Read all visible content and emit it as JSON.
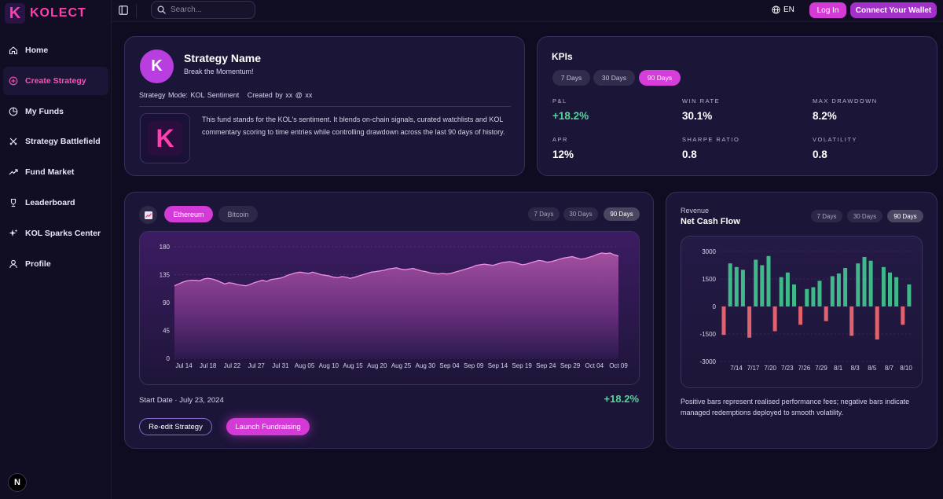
{
  "brand": {
    "logo_letter": "K",
    "name": "KOLECT"
  },
  "colors": {
    "accent": "#d43ad6",
    "positive": "#3fb98a",
    "negative": "#e0626f",
    "background": "#0f0c22"
  },
  "sidebar": {
    "items": [
      {
        "label": "Home",
        "icon": "home-icon",
        "active": false
      },
      {
        "label": "Create Strategy",
        "icon": "plus-circle-icon",
        "active": true
      },
      {
        "label": "My Funds",
        "icon": "pie-chart-icon",
        "active": false
      },
      {
        "label": "Strategy Battlefield",
        "icon": "swords-icon",
        "active": false
      },
      {
        "label": "Fund Market",
        "icon": "trend-up-icon",
        "active": false
      },
      {
        "label": "Leaderboard",
        "icon": "trophy-icon",
        "active": false
      },
      {
        "label": "KOL Sparks Center",
        "icon": "sparkles-icon",
        "active": false
      },
      {
        "label": "Profile",
        "icon": "user-icon",
        "active": false
      }
    ],
    "footer_badge": "N"
  },
  "header": {
    "search_placeholder": "Search...",
    "language": "EN",
    "login_label": "Log In",
    "wallet_label": "Connect Your Wallet"
  },
  "strategy": {
    "avatar_letter": "K",
    "name": "Strategy Name",
    "tagline": "Break the Momentum!",
    "meta": "Strategy Mode: KOL Sentiment   Created by xx @ xx",
    "logo_letter": "K",
    "description": "This fund stands for the KOL's sentiment. It blends on-chain signals, curated watchlists and KOL commentary scoring to time entries while controlling drawdown across the last 90 days of history."
  },
  "kpis": {
    "title": "KPIs",
    "ranges": [
      "7 Days",
      "30 Days",
      "90 Days"
    ],
    "active_range": "90 Days",
    "metrics": [
      {
        "label": "P&L",
        "value": "+18.2%",
        "positive": true
      },
      {
        "label": "WIN RATE",
        "value": "30.1%"
      },
      {
        "label": "MAX DRAWDOWN",
        "value": "8.2%"
      },
      {
        "label": "APR",
        "value": "12%"
      },
      {
        "label": "SHARPE RATIO",
        "value": "0.8"
      },
      {
        "label": "VOLATILITY",
        "value": "0.8"
      }
    ]
  },
  "performance": {
    "assets": [
      "Ethereum",
      "Bitcoin"
    ],
    "active_asset": "Ethereum",
    "ranges": [
      "7 Days",
      "30 Days",
      "90 Days"
    ],
    "active_range": "90 Days",
    "start_date": "Start Date · July 23, 2024",
    "return": "+18.2%",
    "reedit_label": "Re-edit Strategy",
    "launch_label": "Launch Fundraising"
  },
  "cashflow": {
    "eyebrow": "Revenue",
    "title": "Net Cash Flow",
    "ranges": [
      "7 Days",
      "30 Days",
      "90 Days"
    ],
    "active_range": "90 Days",
    "note": "Positive bars represent realised performance fees; negative bars indicate managed redemptions deployed to smooth volatility."
  },
  "chart_data": [
    {
      "type": "area",
      "y_ticks": [
        0,
        45,
        90,
        135,
        180
      ],
      "ylim": [
        0,
        180
      ],
      "x_ticks": [
        "Jul 14",
        "Jul 18",
        "Jul 22",
        "Jul 27",
        "Jul 31",
        "Aug 05",
        "Aug 10",
        "Aug 15",
        "Aug 20",
        "Aug 25",
        "Aug 30",
        "Sep 04",
        "Sep 09",
        "Sep 14",
        "Sep 19",
        "Sep 24",
        "Sep 29",
        "Oct 04",
        "Oct 09"
      ],
      "grid": true,
      "values": [
        117,
        120,
        123,
        125,
        126,
        126,
        125,
        128,
        129,
        128,
        126,
        123,
        120,
        122,
        121,
        119,
        118,
        117,
        119,
        122,
        124,
        126,
        124,
        127,
        128,
        129,
        131,
        134,
        136,
        138,
        139,
        138,
        137,
        139,
        137,
        135,
        134,
        133,
        131,
        130,
        132,
        131,
        129,
        131,
        133,
        135,
        137,
        139,
        140,
        141,
        142,
        144,
        145,
        146,
        144,
        143,
        144,
        145,
        143,
        141,
        140,
        138,
        137,
        136,
        137,
        136,
        137,
        139,
        141,
        143,
        145,
        147,
        150,
        151,
        152,
        151,
        150,
        152,
        154,
        155,
        156,
        155,
        153,
        151,
        152,
        154,
        156,
        158,
        157,
        155,
        156,
        158,
        160,
        162,
        163,
        164,
        162,
        160,
        161,
        163,
        165,
        168,
        170,
        169,
        170,
        167,
        165
      ]
    },
    {
      "type": "bar",
      "y_ticks": [
        3000,
        1500,
        0,
        -1500,
        -3000
      ],
      "ylim": [
        -3000,
        3000
      ],
      "x_ticks": [
        "7/14",
        "7/17",
        "7/20",
        "7/23",
        "7/26",
        "7/29",
        "8/1",
        "8/3",
        "8/5",
        "8/7",
        "8/10"
      ],
      "grid": true,
      "values": [
        -1550,
        2350,
        2150,
        2000,
        -1700,
        2550,
        2250,
        2750,
        -1350,
        1600,
        1850,
        1200,
        -1000,
        950,
        1050,
        1400,
        -800,
        1650,
        1800,
        2100,
        -1600,
        2350,
        2700,
        2500,
        -1800,
        2150,
        1850,
        1600,
        -1000,
        1200
      ]
    }
  ]
}
